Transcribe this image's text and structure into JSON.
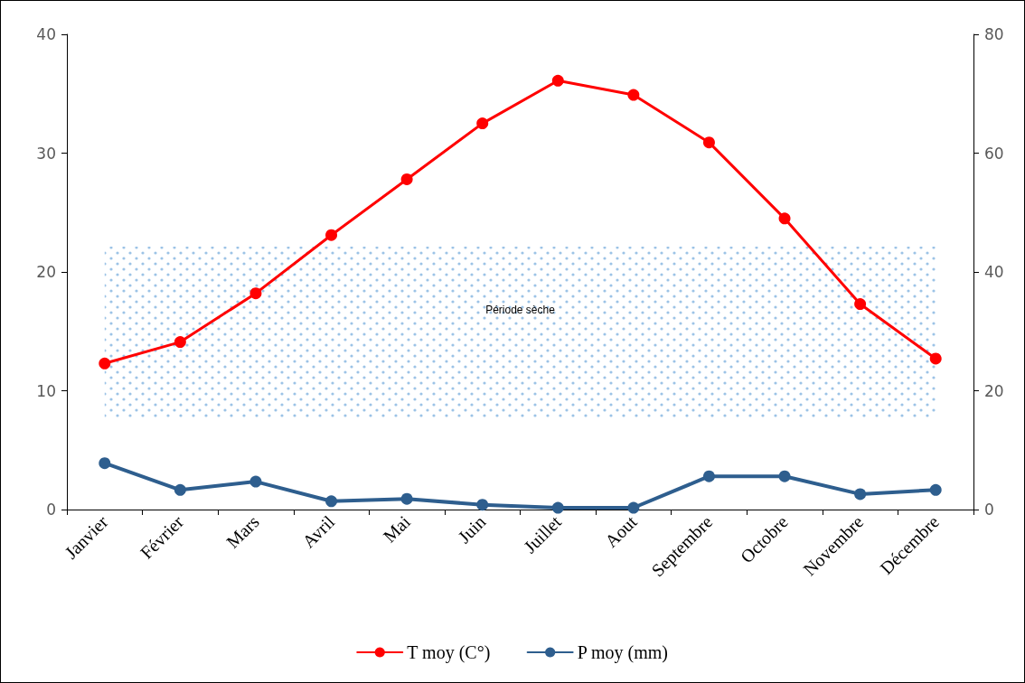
{
  "chart_data": {
    "type": "line",
    "categories": [
      "Janvier",
      "Février",
      "Mars",
      "Avril",
      "Mai",
      "Juin",
      "Juillet",
      "Aout",
      "Septembre",
      "Octobre",
      "Novembre",
      "Décembre"
    ],
    "series": [
      {
        "name": "T moy (C°)",
        "color": "#ff0000",
        "values": [
          12.3,
          14.1,
          18.2,
          23.1,
          27.8,
          32.5,
          36.1,
          34.9,
          30.9,
          24.5,
          17.3,
          12.7
        ]
      },
      {
        "name": "P moy (mm)",
        "color": "#2e5e8e",
        "axis": "y2",
        "values": [
          7.8,
          3.3,
          4.7,
          1.4,
          1.8,
          0.8,
          0.3,
          0.3,
          5.6,
          5.6,
          2.6,
          3.3
        ]
      }
    ],
    "ylim": [
      0,
      40
    ],
    "yticks": [
      0,
      10,
      20,
      30,
      40
    ],
    "y2lim": [
      0,
      80
    ],
    "y2ticks": [
      0,
      20,
      40,
      60,
      80
    ],
    "bands": [
      {
        "axis": "x",
        "from": "Janvier",
        "to": "Décembre",
        "label": "Période sèche",
        "color": "#9cc3e6"
      }
    ],
    "grid": false,
    "legend": "bottom",
    "marker": "circle",
    "line_style": "solid"
  }
}
